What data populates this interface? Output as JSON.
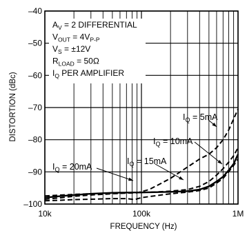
{
  "chart_data": {
    "type": "line",
    "xlabel": "FREQUENCY (Hz)",
    "ylabel": "DISTORTION (dBc)",
    "xscale": "log",
    "xlim": [
      10000,
      1000000
    ],
    "ylim": [
      -100,
      -40
    ],
    "grid": true,
    "x_ticks": [
      {
        "value": 10000,
        "label": "10k"
      },
      {
        "value": 100000,
        "label": "100k"
      },
      {
        "value": 1000000,
        "label": "1M"
      }
    ],
    "y_ticks": [
      {
        "value": -40,
        "label": "–40"
      },
      {
        "value": -50,
        "label": "–50"
      },
      {
        "value": -60,
        "label": "–60"
      },
      {
        "value": -70,
        "label": "–70"
      },
      {
        "value": -80,
        "label": "–80"
      },
      {
        "value": -90,
        "label": "–90"
      },
      {
        "value": -100,
        "label": "–100"
      }
    ],
    "conditions": [
      {
        "main": "A",
        "sub": "V",
        "rest": " = 2 DIFFERENTIAL"
      },
      {
        "main": "V",
        "sub": "OUT",
        "rest": " = 4V",
        "sub2": "P-P"
      },
      {
        "main": "V",
        "sub": "S",
        "rest": " = ±12V"
      },
      {
        "main": "R",
        "sub": "LOAD",
        "rest": " = 50Ω"
      },
      {
        "main": "I",
        "sub": "Q",
        "rest": " PER AMPLIFIER"
      }
    ],
    "series": [
      {
        "label_main": "I",
        "label_sub": "Q",
        "label_rest": " = 5mA",
        "style": "dashed",
        "x": [
          10000,
          15000,
          20000,
          30000,
          50000,
          70000,
          90000,
          120000,
          150000,
          200000,
          300000,
          400000,
          500000,
          600000,
          700000,
          800000,
          1000000
        ],
        "y": [
          -97.5,
          -97.2,
          -97.0,
          -96.8,
          -96.7,
          -96.6,
          -96.5,
          -95.5,
          -94.0,
          -92.0,
          -88.5,
          -86.0,
          -84.5,
          -82.5,
          -80.0,
          -77.0,
          -70.5
        ]
      },
      {
        "label_main": "I",
        "label_sub": "Q",
        "label_rest": " = 10mA",
        "style": "dashed",
        "x": [
          10000,
          15000,
          20000,
          30000,
          50000,
          80000,
          100000,
          150000,
          200000,
          300000,
          400000,
          500000,
          600000,
          700000,
          800000,
          900000,
          1000000
        ],
        "y": [
          -98.5,
          -98.0,
          -97.6,
          -97.2,
          -96.8,
          -96.5,
          -96.4,
          -96.2,
          -96.0,
          -95.5,
          -94.5,
          -93.0,
          -91.0,
          -89.0,
          -87.0,
          -85.0,
          -82.5
        ]
      },
      {
        "label_main": "I",
        "label_sub": "Q",
        "label_rest": " = 15mA",
        "style": "solid",
        "x": [
          10000,
          15000,
          20000,
          30000,
          50000,
          80000,
          100000,
          150000,
          200000,
          300000,
          400000,
          500000,
          600000,
          700000,
          800000,
          900000,
          1000000
        ],
        "y": [
          -98.0,
          -97.5,
          -97.2,
          -96.8,
          -96.5,
          -96.4,
          -96.4,
          -96.3,
          -96.2,
          -96.0,
          -95.5,
          -94.5,
          -93.0,
          -91.5,
          -89.5,
          -87.5,
          -84.5
        ]
      },
      {
        "label_main": "I",
        "label_sub": "Q",
        "label_rest": " = 20mA",
        "style": "dashed",
        "x": [
          10000,
          15000,
          20000,
          30000,
          50000,
          70000,
          85000,
          100000,
          150000,
          200000,
          300000,
          400000,
          500000,
          600000,
          700000,
          800000,
          900000,
          1000000
        ],
        "y": [
          -99.0,
          -98.8,
          -98.6,
          -98.5,
          -98.3,
          -98.3,
          -98.6,
          -98.0,
          -97.3,
          -96.8,
          -96.3,
          -95.8,
          -95.0,
          -93.5,
          -92.0,
          -90.0,
          -88.0,
          -86.0
        ]
      }
    ]
  }
}
